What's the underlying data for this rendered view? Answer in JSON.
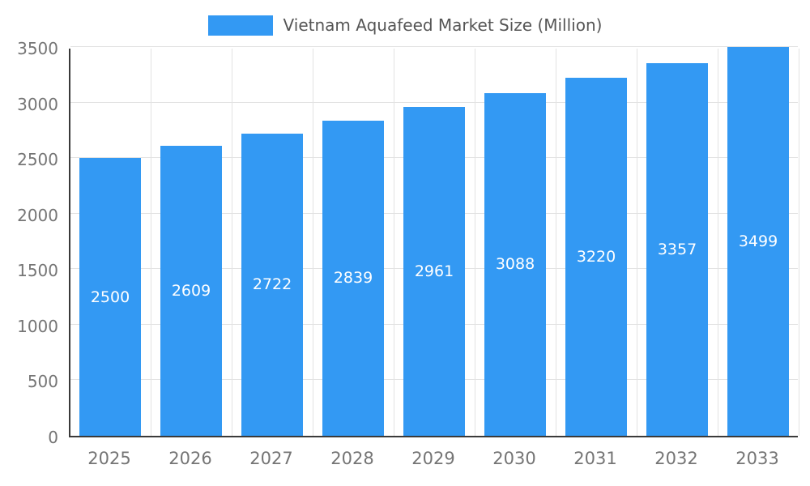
{
  "chart_data": {
    "type": "bar",
    "title": "Vietnam Aquafeed Market Size (Million)",
    "categories": [
      "2025",
      "2026",
      "2027",
      "2028",
      "2029",
      "2030",
      "2031",
      "2032",
      "2033"
    ],
    "values": [
      2500,
      2609,
      2722,
      2839,
      2961,
      3088,
      3220,
      3357,
      3499
    ],
    "xlabel": "",
    "ylabel": "",
    "ylim": [
      0,
      3500
    ],
    "yticks": [
      0,
      500,
      1000,
      1500,
      2000,
      2500,
      3000,
      3500
    ],
    "grid": true,
    "legend_position": "top-center",
    "bar_color": "#3399f3",
    "value_label_color": "#ffffff",
    "axis_label_color": "#757575",
    "gridline_color": "#e2e2e2",
    "axis_line_color": "#3a3a3a",
    "title_color": "#555555"
  }
}
